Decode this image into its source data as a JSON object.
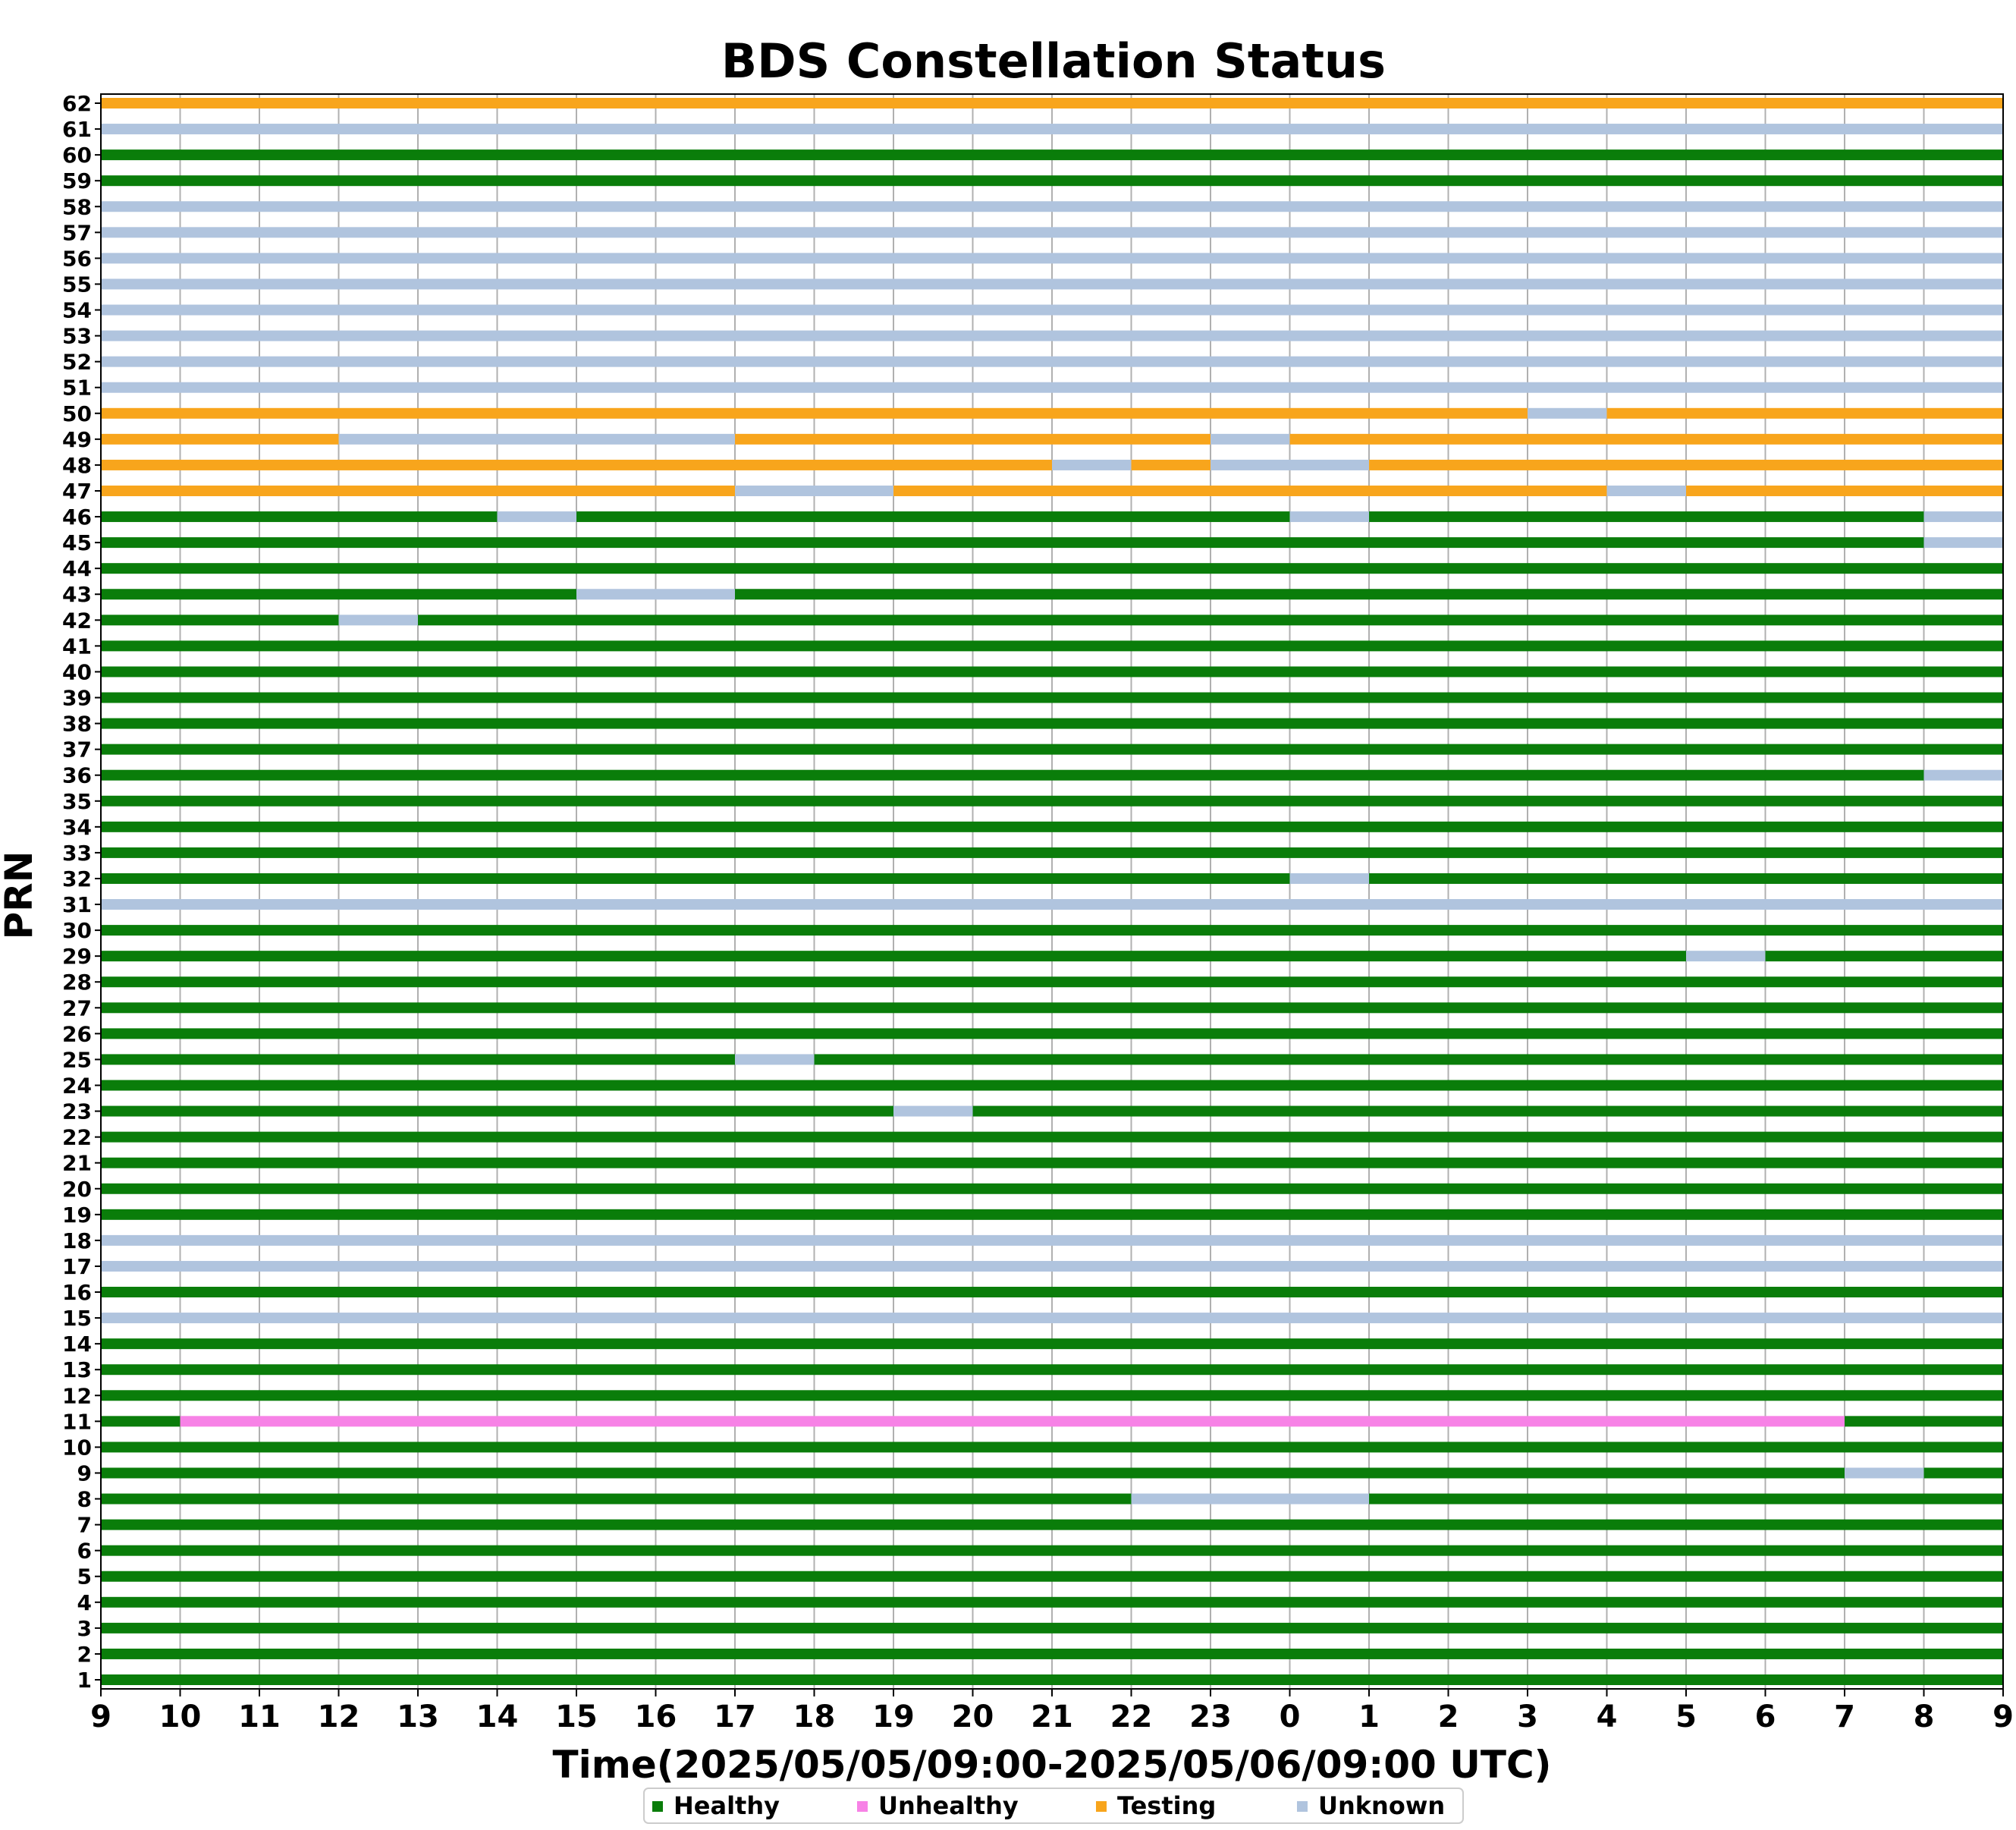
{
  "chart_data": {
    "type": "timeline",
    "title": "BDS Constellation Status",
    "xlabel": "Time(2025/05/05/09:00-2025/05/06/09:00 UTC)",
    "ylabel": "PRN",
    "xlim": [
      "2025-05-05T09:00",
      "2025-05-06T09:00"
    ],
    "x_tick_labels": [
      "9",
      "10",
      "11",
      "12",
      "13",
      "14",
      "15",
      "16",
      "17",
      "18",
      "19",
      "20",
      "21",
      "22",
      "23",
      "0",
      "1",
      "2",
      "3",
      "4",
      "5",
      "6",
      "7",
      "8",
      "9"
    ],
    "y_tick_labels": [
      "1",
      "2",
      "3",
      "4",
      "5",
      "6",
      "7",
      "8",
      "9",
      "10",
      "11",
      "12",
      "13",
      "14",
      "15",
      "16",
      "17",
      "18",
      "19",
      "20",
      "21",
      "22",
      "23",
      "24",
      "25",
      "26",
      "27",
      "28",
      "29",
      "30",
      "31",
      "32",
      "33",
      "34",
      "35",
      "36",
      "37",
      "38",
      "39",
      "40",
      "41",
      "42",
      "43",
      "44",
      "45",
      "46",
      "47",
      "48",
      "49",
      "50",
      "51",
      "52",
      "53",
      "54",
      "55",
      "56",
      "57",
      "58",
      "59",
      "60",
      "61",
      "62"
    ],
    "grid": true,
    "legend_position": "bottom-center",
    "status_colors": {
      "Healthy": "#0a7d0a",
      "Unhealthy": "#f782e6",
      "Testing": "#f8a51c",
      "Unknown": "#b0c4de"
    },
    "legend": [
      "Healthy",
      "Unhealthy",
      "Testing",
      "Unknown"
    ],
    "series": [
      {
        "prn": 1,
        "segments": [
          [
            "2025-05-05T09:00",
            "2025-05-06T09:00",
            "Healthy"
          ]
        ]
      },
      {
        "prn": 2,
        "segments": [
          [
            "2025-05-05T09:00",
            "2025-05-06T09:00",
            "Healthy"
          ]
        ]
      },
      {
        "prn": 3,
        "segments": [
          [
            "2025-05-05T09:00",
            "2025-05-06T09:00",
            "Healthy"
          ]
        ]
      },
      {
        "prn": 4,
        "segments": [
          [
            "2025-05-05T09:00",
            "2025-05-06T09:00",
            "Healthy"
          ]
        ]
      },
      {
        "prn": 5,
        "segments": [
          [
            "2025-05-05T09:00",
            "2025-05-06T09:00",
            "Healthy"
          ]
        ]
      },
      {
        "prn": 6,
        "segments": [
          [
            "2025-05-05T09:00",
            "2025-05-06T09:00",
            "Healthy"
          ]
        ]
      },
      {
        "prn": 7,
        "segments": [
          [
            "2025-05-05T09:00",
            "2025-05-06T09:00",
            "Healthy"
          ]
        ]
      },
      {
        "prn": 8,
        "segments": [
          [
            "2025-05-05T09:00",
            "2025-05-05T22:00",
            "Healthy"
          ],
          [
            "2025-05-05T22:00",
            "2025-05-06T01:00",
            "Unknown"
          ],
          [
            "2025-05-06T01:00",
            "2025-05-06T09:00",
            "Healthy"
          ]
        ]
      },
      {
        "prn": 9,
        "segments": [
          [
            "2025-05-05T09:00",
            "2025-05-06T07:00",
            "Healthy"
          ],
          [
            "2025-05-06T07:00",
            "2025-05-06T08:00",
            "Unknown"
          ],
          [
            "2025-05-06T08:00",
            "2025-05-06T09:00",
            "Healthy"
          ]
        ]
      },
      {
        "prn": 10,
        "segments": [
          [
            "2025-05-05T09:00",
            "2025-05-06T09:00",
            "Healthy"
          ]
        ]
      },
      {
        "prn": 11,
        "segments": [
          [
            "2025-05-05T09:00",
            "2025-05-05T10:00",
            "Healthy"
          ],
          [
            "2025-05-05T10:00",
            "2025-05-06T07:00",
            "Unhealthy"
          ],
          [
            "2025-05-06T07:00",
            "2025-05-06T09:00",
            "Healthy"
          ]
        ]
      },
      {
        "prn": 12,
        "segments": [
          [
            "2025-05-05T09:00",
            "2025-05-06T09:00",
            "Healthy"
          ]
        ]
      },
      {
        "prn": 13,
        "segments": [
          [
            "2025-05-05T09:00",
            "2025-05-06T09:00",
            "Healthy"
          ]
        ]
      },
      {
        "prn": 14,
        "segments": [
          [
            "2025-05-05T09:00",
            "2025-05-06T09:00",
            "Healthy"
          ]
        ]
      },
      {
        "prn": 15,
        "segments": [
          [
            "2025-05-05T09:00",
            "2025-05-06T09:00",
            "Unknown"
          ]
        ]
      },
      {
        "prn": 16,
        "segments": [
          [
            "2025-05-05T09:00",
            "2025-05-06T09:00",
            "Healthy"
          ]
        ]
      },
      {
        "prn": 17,
        "segments": [
          [
            "2025-05-05T09:00",
            "2025-05-06T09:00",
            "Unknown"
          ]
        ]
      },
      {
        "prn": 18,
        "segments": [
          [
            "2025-05-05T09:00",
            "2025-05-06T09:00",
            "Unknown"
          ]
        ]
      },
      {
        "prn": 19,
        "segments": [
          [
            "2025-05-05T09:00",
            "2025-05-06T09:00",
            "Healthy"
          ]
        ]
      },
      {
        "prn": 20,
        "segments": [
          [
            "2025-05-05T09:00",
            "2025-05-06T09:00",
            "Healthy"
          ]
        ]
      },
      {
        "prn": 21,
        "segments": [
          [
            "2025-05-05T09:00",
            "2025-05-06T09:00",
            "Healthy"
          ]
        ]
      },
      {
        "prn": 22,
        "segments": [
          [
            "2025-05-05T09:00",
            "2025-05-06T09:00",
            "Healthy"
          ]
        ]
      },
      {
        "prn": 23,
        "segments": [
          [
            "2025-05-05T09:00",
            "2025-05-05T19:00",
            "Healthy"
          ],
          [
            "2025-05-05T19:00",
            "2025-05-05T20:00",
            "Unknown"
          ],
          [
            "2025-05-05T20:00",
            "2025-05-06T09:00",
            "Healthy"
          ]
        ]
      },
      {
        "prn": 24,
        "segments": [
          [
            "2025-05-05T09:00",
            "2025-05-06T09:00",
            "Healthy"
          ]
        ]
      },
      {
        "prn": 25,
        "segments": [
          [
            "2025-05-05T09:00",
            "2025-05-05T17:00",
            "Healthy"
          ],
          [
            "2025-05-05T17:00",
            "2025-05-05T18:00",
            "Unknown"
          ],
          [
            "2025-05-05T18:00",
            "2025-05-06T09:00",
            "Healthy"
          ]
        ]
      },
      {
        "prn": 26,
        "segments": [
          [
            "2025-05-05T09:00",
            "2025-05-06T09:00",
            "Healthy"
          ]
        ]
      },
      {
        "prn": 27,
        "segments": [
          [
            "2025-05-05T09:00",
            "2025-05-06T09:00",
            "Healthy"
          ]
        ]
      },
      {
        "prn": 28,
        "segments": [
          [
            "2025-05-05T09:00",
            "2025-05-06T09:00",
            "Healthy"
          ]
        ]
      },
      {
        "prn": 29,
        "segments": [
          [
            "2025-05-05T09:00",
            "2025-05-06T05:00",
            "Healthy"
          ],
          [
            "2025-05-06T05:00",
            "2025-05-06T06:00",
            "Unknown"
          ],
          [
            "2025-05-06T06:00",
            "2025-05-06T09:00",
            "Healthy"
          ]
        ]
      },
      {
        "prn": 30,
        "segments": [
          [
            "2025-05-05T09:00",
            "2025-05-06T09:00",
            "Healthy"
          ]
        ]
      },
      {
        "prn": 31,
        "segments": [
          [
            "2025-05-05T09:00",
            "2025-05-06T09:00",
            "Unknown"
          ]
        ]
      },
      {
        "prn": 32,
        "segments": [
          [
            "2025-05-05T09:00",
            "2025-05-06T00:00",
            "Healthy"
          ],
          [
            "2025-05-06T00:00",
            "2025-05-06T01:00",
            "Unknown"
          ],
          [
            "2025-05-06T01:00",
            "2025-05-06T09:00",
            "Healthy"
          ]
        ]
      },
      {
        "prn": 33,
        "segments": [
          [
            "2025-05-05T09:00",
            "2025-05-06T09:00",
            "Healthy"
          ]
        ]
      },
      {
        "prn": 34,
        "segments": [
          [
            "2025-05-05T09:00",
            "2025-05-06T09:00",
            "Healthy"
          ]
        ]
      },
      {
        "prn": 35,
        "segments": [
          [
            "2025-05-05T09:00",
            "2025-05-06T09:00",
            "Healthy"
          ]
        ]
      },
      {
        "prn": 36,
        "segments": [
          [
            "2025-05-05T09:00",
            "2025-05-06T08:00",
            "Healthy"
          ],
          [
            "2025-05-06T08:00",
            "2025-05-06T09:00",
            "Unknown"
          ]
        ]
      },
      {
        "prn": 37,
        "segments": [
          [
            "2025-05-05T09:00",
            "2025-05-06T09:00",
            "Healthy"
          ]
        ]
      },
      {
        "prn": 38,
        "segments": [
          [
            "2025-05-05T09:00",
            "2025-05-06T09:00",
            "Healthy"
          ]
        ]
      },
      {
        "prn": 39,
        "segments": [
          [
            "2025-05-05T09:00",
            "2025-05-06T09:00",
            "Healthy"
          ]
        ]
      },
      {
        "prn": 40,
        "segments": [
          [
            "2025-05-05T09:00",
            "2025-05-06T09:00",
            "Healthy"
          ]
        ]
      },
      {
        "prn": 41,
        "segments": [
          [
            "2025-05-05T09:00",
            "2025-05-06T09:00",
            "Healthy"
          ]
        ]
      },
      {
        "prn": 42,
        "segments": [
          [
            "2025-05-05T09:00",
            "2025-05-05T12:00",
            "Healthy"
          ],
          [
            "2025-05-05T12:00",
            "2025-05-05T13:00",
            "Unknown"
          ],
          [
            "2025-05-05T13:00",
            "2025-05-06T09:00",
            "Healthy"
          ]
        ]
      },
      {
        "prn": 43,
        "segments": [
          [
            "2025-05-05T09:00",
            "2025-05-05T15:00",
            "Healthy"
          ],
          [
            "2025-05-05T15:00",
            "2025-05-05T17:00",
            "Unknown"
          ],
          [
            "2025-05-05T17:00",
            "2025-05-06T09:00",
            "Healthy"
          ]
        ]
      },
      {
        "prn": 44,
        "segments": [
          [
            "2025-05-05T09:00",
            "2025-05-06T09:00",
            "Healthy"
          ]
        ]
      },
      {
        "prn": 45,
        "segments": [
          [
            "2025-05-05T09:00",
            "2025-05-06T08:00",
            "Healthy"
          ],
          [
            "2025-05-06T08:00",
            "2025-05-06T09:00",
            "Unknown"
          ]
        ]
      },
      {
        "prn": 46,
        "segments": [
          [
            "2025-05-05T09:00",
            "2025-05-05T14:00",
            "Healthy"
          ],
          [
            "2025-05-05T14:00",
            "2025-05-05T15:00",
            "Unknown"
          ],
          [
            "2025-05-05T15:00",
            "2025-05-06T00:00",
            "Healthy"
          ],
          [
            "2025-05-06T00:00",
            "2025-05-06T01:00",
            "Unknown"
          ],
          [
            "2025-05-06T01:00",
            "2025-05-06T08:00",
            "Healthy"
          ],
          [
            "2025-05-06T08:00",
            "2025-05-06T09:00",
            "Unknown"
          ]
        ]
      },
      {
        "prn": 47,
        "segments": [
          [
            "2025-05-05T09:00",
            "2025-05-05T17:00",
            "Testing"
          ],
          [
            "2025-05-05T17:00",
            "2025-05-05T19:00",
            "Unknown"
          ],
          [
            "2025-05-05T19:00",
            "2025-05-06T04:00",
            "Testing"
          ],
          [
            "2025-05-06T04:00",
            "2025-05-06T05:00",
            "Unknown"
          ],
          [
            "2025-05-06T05:00",
            "2025-05-06T09:00",
            "Testing"
          ]
        ]
      },
      {
        "prn": 48,
        "segments": [
          [
            "2025-05-05T09:00",
            "2025-05-05T21:00",
            "Testing"
          ],
          [
            "2025-05-05T21:00",
            "2025-05-05T22:00",
            "Unknown"
          ],
          [
            "2025-05-05T22:00",
            "2025-05-05T23:00",
            "Testing"
          ],
          [
            "2025-05-05T23:00",
            "2025-05-06T01:00",
            "Unknown"
          ],
          [
            "2025-05-06T01:00",
            "2025-05-06T09:00",
            "Testing"
          ]
        ]
      },
      {
        "prn": 49,
        "segments": [
          [
            "2025-05-05T09:00",
            "2025-05-05T12:00",
            "Testing"
          ],
          [
            "2025-05-05T12:00",
            "2025-05-05T17:00",
            "Unknown"
          ],
          [
            "2025-05-05T17:00",
            "2025-05-05T23:00",
            "Testing"
          ],
          [
            "2025-05-05T23:00",
            "2025-05-06T00:00",
            "Unknown"
          ],
          [
            "2025-05-06T00:00",
            "2025-05-06T09:00",
            "Testing"
          ]
        ]
      },
      {
        "prn": 50,
        "segments": [
          [
            "2025-05-05T09:00",
            "2025-05-06T03:00",
            "Testing"
          ],
          [
            "2025-05-06T03:00",
            "2025-05-06T04:00",
            "Unknown"
          ],
          [
            "2025-05-06T04:00",
            "2025-05-06T09:00",
            "Testing"
          ]
        ]
      },
      {
        "prn": 51,
        "segments": [
          [
            "2025-05-05T09:00",
            "2025-05-06T09:00",
            "Unknown"
          ]
        ]
      },
      {
        "prn": 52,
        "segments": [
          [
            "2025-05-05T09:00",
            "2025-05-06T09:00",
            "Unknown"
          ]
        ]
      },
      {
        "prn": 53,
        "segments": [
          [
            "2025-05-05T09:00",
            "2025-05-06T09:00",
            "Unknown"
          ]
        ]
      },
      {
        "prn": 54,
        "segments": [
          [
            "2025-05-05T09:00",
            "2025-05-06T09:00",
            "Unknown"
          ]
        ]
      },
      {
        "prn": 55,
        "segments": [
          [
            "2025-05-05T09:00",
            "2025-05-06T09:00",
            "Unknown"
          ]
        ]
      },
      {
        "prn": 56,
        "segments": [
          [
            "2025-05-05T09:00",
            "2025-05-06T09:00",
            "Unknown"
          ]
        ]
      },
      {
        "prn": 57,
        "segments": [
          [
            "2025-05-05T09:00",
            "2025-05-06T09:00",
            "Unknown"
          ]
        ]
      },
      {
        "prn": 58,
        "segments": [
          [
            "2025-05-05T09:00",
            "2025-05-06T09:00",
            "Unknown"
          ]
        ]
      },
      {
        "prn": 59,
        "segments": [
          [
            "2025-05-05T09:00",
            "2025-05-06T09:00",
            "Healthy"
          ]
        ]
      },
      {
        "prn": 60,
        "segments": [
          [
            "2025-05-05T09:00",
            "2025-05-06T09:00",
            "Healthy"
          ]
        ]
      },
      {
        "prn": 61,
        "segments": [
          [
            "2025-05-05T09:00",
            "2025-05-06T09:00",
            "Unknown"
          ]
        ]
      },
      {
        "prn": 62,
        "segments": [
          [
            "2025-05-05T09:00",
            "2025-05-06T09:00",
            "Testing"
          ]
        ]
      }
    ]
  }
}
